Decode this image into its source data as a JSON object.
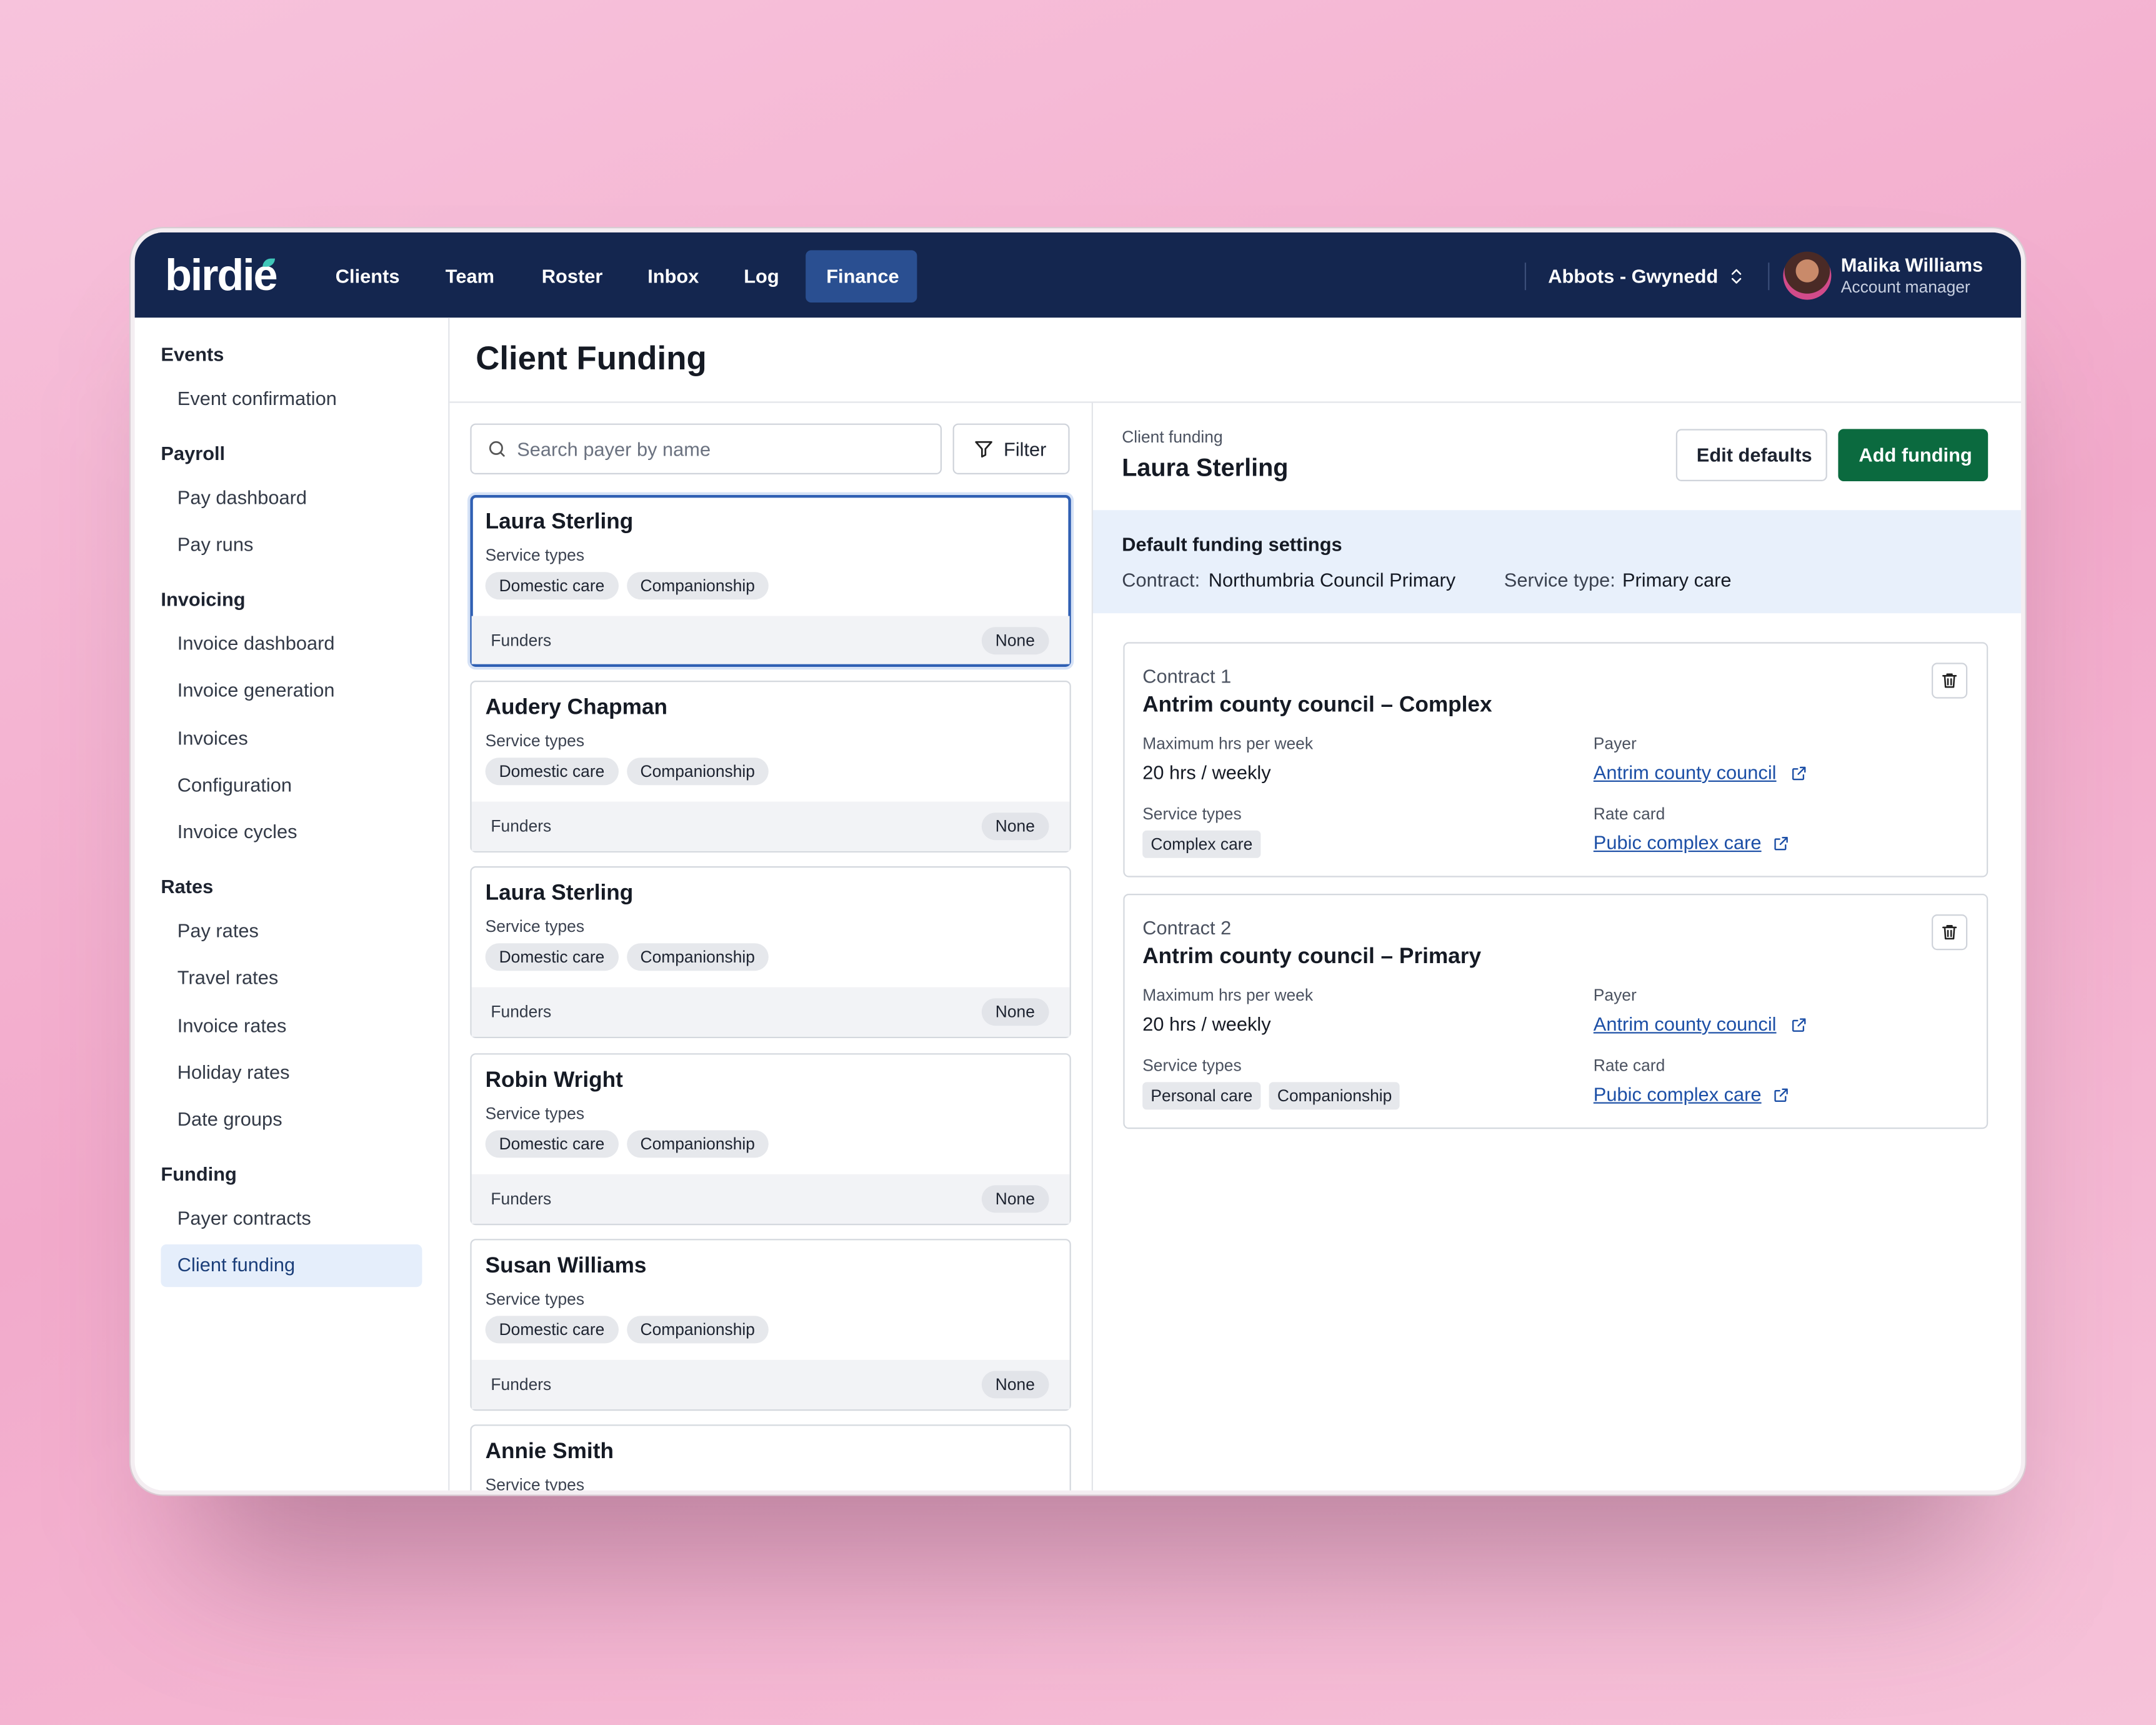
{
  "header": {
    "logo": "birdie",
    "nav": [
      "Clients",
      "Team",
      "Roster",
      "Inbox",
      "Log",
      "Finance"
    ],
    "location": "Abbots - Gwynedd",
    "user": {
      "name": "Malika Williams",
      "role": "Account manager"
    }
  },
  "sidebar": [
    {
      "heading": "Events",
      "items": [
        "Event confirmation"
      ]
    },
    {
      "heading": "Payroll",
      "items": [
        "Pay dashboard",
        "Pay runs"
      ]
    },
    {
      "heading": "Invoicing",
      "items": [
        "Invoice dashboard",
        "Invoice generation",
        "Invoices",
        "Configuration",
        "Invoice cycles"
      ]
    },
    {
      "heading": "Rates",
      "items": [
        "Pay rates",
        "Travel rates",
        "Invoice rates",
        "Holiday rates",
        "Date groups"
      ]
    },
    {
      "heading": "Funding",
      "items": [
        "Payer contracts",
        "Client funding"
      ]
    }
  ],
  "page_title": "Client Funding",
  "list": {
    "search_placeholder": "Search payer by name",
    "filter": "Filter",
    "cards": [
      {
        "name": "Laura Sterling",
        "service_types_label": "Service types",
        "tags": [
          "Domestic care",
          "Companionship"
        ],
        "funders_label": "Funders",
        "funders": "None"
      },
      {
        "name": "Audery Chapman",
        "service_types_label": "Service types",
        "tags": [
          "Domestic care",
          "Companionship"
        ],
        "funders_label": "Funders",
        "funders": "None"
      },
      {
        "name": "Laura Sterling",
        "service_types_label": "Service types",
        "tags": [
          "Domestic care",
          "Companionship"
        ],
        "funders_label": "Funders",
        "funders": "None"
      },
      {
        "name": "Robin Wright",
        "service_types_label": "Service types",
        "tags": [
          "Domestic care",
          "Companionship"
        ],
        "funders_label": "Funders",
        "funders": "None"
      },
      {
        "name": "Susan Williams",
        "service_types_label": "Service types",
        "tags": [
          "Domestic care",
          "Companionship"
        ],
        "funders_label": "Funders",
        "funders": "None"
      },
      {
        "name": "Annie Smith",
        "service_types_label": "Service types"
      }
    ]
  },
  "detail": {
    "eyebrow": "Client funding",
    "name": "Laura Sterling",
    "buttons": [
      "Edit defaults",
      "Add funding"
    ],
    "defaults": {
      "title": "Default funding settings",
      "contract_label": "Contract:",
      "contract": "Northumbria Council Primary",
      "service_label": "Service type:",
      "service": "Primary care"
    },
    "contracts": [
      {
        "label": "Contract 1",
        "title": "Antrim county council – Complex",
        "hours_label": "Maximum hrs per week",
        "hours": "20 hrs / weekly",
        "payer_label": "Payer",
        "payer": "Antrim county council",
        "service_types_label": "Service types",
        "tags": [
          "Complex care"
        ],
        "rate_label": "Rate card",
        "rate": "Pubic complex care"
      },
      {
        "label": "Contract 2",
        "title": "Antrim county council – Primary",
        "hours_label": "Maximum hrs per week",
        "hours": "20 hrs / weekly",
        "payer_label": "Payer",
        "payer": "Antrim county council",
        "service_types_label": "Service types",
        "tags": [
          "Personal care",
          "Companionship"
        ],
        "rate_label": "Rate card",
        "rate": "Pubic complex care"
      }
    ]
  }
}
